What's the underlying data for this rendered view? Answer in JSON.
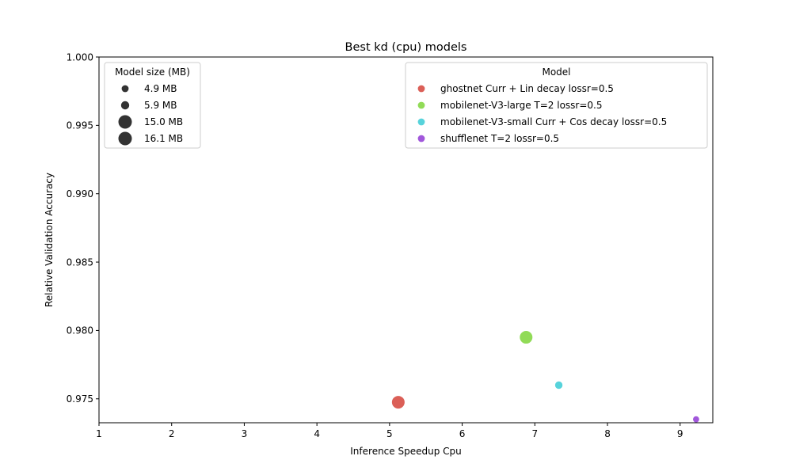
{
  "chart_data": {
    "type": "scatter",
    "title": "Best kd (cpu) models",
    "xlabel": "Inference Speedup Cpu",
    "ylabel": "Relative Validation Accuracy",
    "xlim": [
      1,
      9.45
    ],
    "ylim": [
      0.97325,
      1.0
    ],
    "x_ticks": [
      1,
      2,
      3,
      4,
      5,
      6,
      7,
      8,
      9
    ],
    "y_ticks": [
      0.975,
      0.98,
      0.985,
      0.99,
      0.995,
      1.0
    ],
    "grid": false,
    "legend_model": {
      "title": "Model",
      "placement": "top-right"
    },
    "legend_size": {
      "title": "Model size (MB)",
      "placement": "top-left",
      "entries": [
        {
          "label": "4.9 MB",
          "size_mb": 4.9
        },
        {
          "label": "5.9 MB",
          "size_mb": 5.9
        },
        {
          "label": "15.0 MB",
          "size_mb": 15.0
        },
        {
          "label": "16.1 MB",
          "size_mb": 16.1
        }
      ]
    },
    "series": [
      {
        "name": "ghostnet Curr + Lin decay lossr=0.5",
        "color": "#db5f57",
        "x": 5.12,
        "y": 0.97475,
        "size_mb": 15.0
      },
      {
        "name": "mobilenet-V3-large T=2 lossr=0.5",
        "color": "#91db57",
        "x": 6.88,
        "y": 0.9795,
        "size_mb": 16.1
      },
      {
        "name": "mobilenet-V3-small Curr + Cos decay lossr=0.5",
        "color": "#57d3db",
        "x": 7.33,
        "y": 0.976,
        "size_mb": 5.9
      },
      {
        "name": "shufflenet T=2 lossr=0.5",
        "color": "#a157db",
        "x": 9.22,
        "y": 0.9735,
        "size_mb": 4.9
      }
    ]
  }
}
